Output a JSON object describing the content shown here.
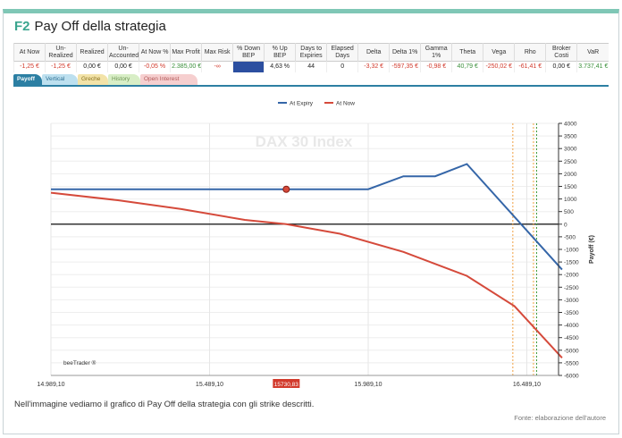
{
  "figure": {
    "number": "F2",
    "title": "Pay Off della strategia",
    "caption": "Nell'immagine vediamo il grafico di Pay Off della strategia con gli strike descritti.",
    "source": "Fonte: elaborazione dell'autore",
    "accent_color": "#7fc7b6"
  },
  "stats": {
    "headers": [
      "At Now",
      "Un-Realized",
      "Realized",
      "Un-Accounted",
      "At Now %",
      "Max Profit",
      "Max Risk",
      "% Down BEP",
      "% Up BEP",
      "Days to Expiries",
      "Elapsed Days",
      "Delta",
      "Delta 1%",
      "Gamma 1%",
      "Theta",
      "Vega",
      "Rho",
      "Broker Costi",
      "VaR"
    ],
    "values": [
      {
        "v": "-1,25 €",
        "tone": "neg"
      },
      {
        "v": "-1,25 €",
        "tone": "neg"
      },
      {
        "v": "0,00 €",
        "tone": "neu"
      },
      {
        "v": "0,00 €",
        "tone": "neu"
      },
      {
        "v": "-0,05 %",
        "tone": "neg"
      },
      {
        "v": "2.385,00 €",
        "tone": "pos"
      },
      {
        "v": "-∞",
        "tone": "neg"
      },
      {
        "v": "",
        "tone": "bepdown"
      },
      {
        "v": "4,63 %",
        "tone": "neu"
      },
      {
        "v": "44",
        "tone": "neu"
      },
      {
        "v": "0",
        "tone": "neu"
      },
      {
        "v": "-3,32 €",
        "tone": "neg"
      },
      {
        "v": "-597,35 €",
        "tone": "neg"
      },
      {
        "v": "-0,98 €",
        "tone": "neg"
      },
      {
        "v": "40,79 €",
        "tone": "pos"
      },
      {
        "v": "-250,02 €",
        "tone": "neg"
      },
      {
        "v": "-61,41 €",
        "tone": "neg"
      },
      {
        "v": "0,00 €",
        "tone": "neu"
      },
      {
        "v": "3.737,41 €",
        "tone": "pos"
      }
    ]
  },
  "tabs": [
    {
      "label": "Payoff",
      "active": true
    },
    {
      "label": "Vertical",
      "active": false
    },
    {
      "label": "Greche",
      "active": false
    },
    {
      "label": "History",
      "active": false
    },
    {
      "label": "Open Interest",
      "active": false
    }
  ],
  "chart_data": {
    "type": "line",
    "watermark": "DAX 30 Index",
    "brand": "beeTrader ®",
    "ylabel": "Payoff (€)",
    "xlim": [
      14989.1,
      16589.1
    ],
    "ylim": [
      -6000,
      4000
    ],
    "x_ticks": [
      {
        "value": 14989.1,
        "label": "14.989,10"
      },
      {
        "value": 15489.1,
        "label": "15.489,10"
      },
      {
        "value": 15989.1,
        "label": "15.989,10"
      },
      {
        "value": 16489.1,
        "label": "16.489,10"
      }
    ],
    "y_ticks": [
      -6000,
      -5500,
      -5000,
      -4500,
      -4000,
      -3500,
      -3000,
      -2500,
      -2000,
      -1500,
      -1000,
      -500,
      0,
      500,
      1000,
      1500,
      2000,
      2500,
      3000,
      3500,
      4000
    ],
    "current_price": {
      "value": 15730.83,
      "label": "15730,83",
      "color": "#d23a2c"
    },
    "vertical_markers": [
      {
        "x": 16445,
        "color": "#f0a040"
      },
      {
        "x": 16510,
        "color": "#f0a040"
      },
      {
        "x": 16520,
        "color": "#3a9a3a"
      }
    ],
    "legend_position": "top-center",
    "series": [
      {
        "name": "At Expiry",
        "color": "#3566a8",
        "points": [
          [
            14989.1,
            1385
          ],
          [
            15730.83,
            1385
          ],
          [
            15989.1,
            1385
          ],
          [
            16100,
            1900
          ],
          [
            16200,
            1900
          ],
          [
            16300,
            2385
          ],
          [
            16600,
            -1800
          ]
        ]
      },
      {
        "name": "At Now",
        "color": "#d54a3b",
        "points": [
          [
            14989.1,
            1250
          ],
          [
            15200,
            950
          ],
          [
            15400,
            600
          ],
          [
            15600,
            170
          ],
          [
            15730.83,
            -1
          ],
          [
            15900,
            -380
          ],
          [
            16100,
            -1100
          ],
          [
            16300,
            -2050
          ],
          [
            16450,
            -3250
          ],
          [
            16600,
            -5300
          ]
        ]
      }
    ]
  }
}
